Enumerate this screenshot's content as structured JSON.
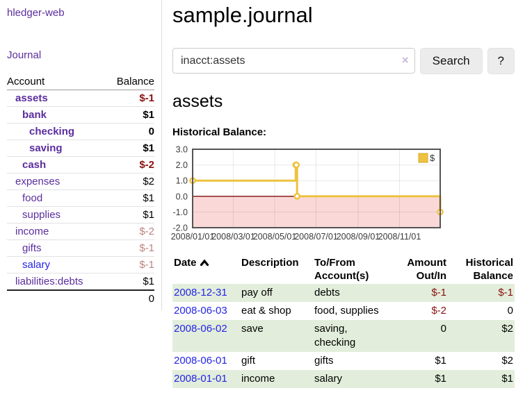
{
  "app": {
    "brand": "hledger-web",
    "journal_link": "Journal"
  },
  "sidebar": {
    "account_header": "Account",
    "balance_header": "Balance",
    "rows": [
      {
        "account": "assets",
        "indent": 1,
        "bold": true,
        "balance": "$-1",
        "tone": "neg",
        "link": "purple"
      },
      {
        "account": "bank",
        "indent": 2,
        "bold": true,
        "balance": "$1",
        "tone": "",
        "link": "purple"
      },
      {
        "account": "checking",
        "indent": 3,
        "bold": true,
        "balance": "0",
        "tone": "",
        "link": "purple"
      },
      {
        "account": "saving",
        "indent": 3,
        "bold": true,
        "balance": "$1",
        "tone": "",
        "link": "purple"
      },
      {
        "account": "cash",
        "indent": 2,
        "bold": true,
        "balance": "$-2",
        "tone": "neg",
        "link": "purple"
      },
      {
        "account": "expenses",
        "indent": 1,
        "bold": false,
        "balance": "$2",
        "tone": "",
        "link": "purple"
      },
      {
        "account": "food",
        "indent": 2,
        "bold": false,
        "balance": "$1",
        "tone": "",
        "link": "purple"
      },
      {
        "account": "supplies",
        "indent": 2,
        "bold": false,
        "balance": "$1",
        "tone": "",
        "link": "purple"
      },
      {
        "account": "income",
        "indent": 1,
        "bold": false,
        "balance": "$-2",
        "tone": "rose",
        "link": "purple"
      },
      {
        "account": "gifts",
        "indent": 2,
        "bold": false,
        "balance": "$-1",
        "tone": "rose",
        "link": "purple"
      },
      {
        "account": "salary",
        "indent": 2,
        "bold": false,
        "balance": "$-1",
        "tone": "rose",
        "link": "blue"
      },
      {
        "account": "liabilities:debts",
        "indent": 1,
        "bold": false,
        "balance": "$1",
        "tone": "",
        "link": "purple"
      }
    ],
    "total": "0"
  },
  "main": {
    "title": "sample.journal",
    "search": {
      "value": "inacct:assets",
      "clear_icon": "×",
      "button_label": "Search",
      "help_label": "?"
    },
    "account_heading": "assets"
  },
  "chart_data": {
    "type": "line",
    "step": true,
    "title": "Historical Balance:",
    "x_unit": "day_of_year_2008",
    "xlim": [
      0,
      365
    ],
    "ylim": [
      -2,
      3
    ],
    "xticks": [
      {
        "pos": 0,
        "label": "2008/01/01"
      },
      {
        "pos": 60,
        "label": "2008/03/01"
      },
      {
        "pos": 121,
        "label": "2008/05/01"
      },
      {
        "pos": 182,
        "label": "2008/07/01"
      },
      {
        "pos": 244,
        "label": "2008/09/01"
      },
      {
        "pos": 305,
        "label": "2008/11/01"
      }
    ],
    "yticks": [
      3,
      2,
      1,
      0,
      -1,
      -2
    ],
    "series": [
      {
        "name": "$",
        "color": "#edc240",
        "points": [
          [
            0,
            1
          ],
          [
            152,
            2
          ],
          [
            153,
            2
          ],
          [
            154,
            0
          ],
          [
            365,
            -1
          ]
        ]
      }
    ],
    "legend": {
      "position": "top-right",
      "entries": [
        {
          "label": "$",
          "color": "#edc240"
        }
      ]
    },
    "grid": true,
    "border_color": "#545454",
    "zero_line_color": "#7f0c0c",
    "negative_region_color": "#fbd8d8"
  },
  "register": {
    "headers": [
      {
        "key": "date",
        "lines": [
          "Date"
        ],
        "sortable": true
      },
      {
        "key": "description",
        "lines": [
          "Description"
        ]
      },
      {
        "key": "accounts",
        "lines": [
          "To/From",
          "Account(s)"
        ]
      },
      {
        "key": "amount",
        "lines": [
          "Amount",
          "Out/In"
        ],
        "align": "right"
      },
      {
        "key": "balance",
        "lines": [
          "Historical",
          "Balance"
        ],
        "align": "right"
      }
    ],
    "rows": [
      {
        "date": "2008-12-31",
        "description": "pay off",
        "accounts": "debts",
        "amount": "$-1",
        "amount_negative": true,
        "balance": "$-1",
        "balance_negative": true
      },
      {
        "date": "2008-06-03",
        "description": "eat & shop",
        "accounts": "food, supplies",
        "amount": "$-2",
        "amount_negative": true,
        "balance": "0",
        "balance_negative": false
      },
      {
        "date": "2008-06-02",
        "description": "save",
        "accounts": "saving,\nchecking",
        "amount": "0",
        "amount_negative": false,
        "balance": "$2",
        "balance_negative": false
      },
      {
        "date": "2008-06-01",
        "description": "gift",
        "accounts": "gifts",
        "amount": "$1",
        "amount_negative": false,
        "balance": "$2",
        "balance_negative": false
      },
      {
        "date": "2008-01-01",
        "description": "income",
        "accounts": "salary",
        "amount": "$1",
        "amount_negative": false,
        "balance": "$1",
        "balance_negative": false
      }
    ]
  },
  "colors": {
    "link_purple": "#5b2d9e",
    "link_blue": "#2424e8",
    "negative_strong": "#8b1010",
    "negative_soft": "#bd8282",
    "row_stripe_green": "#e2eedb",
    "series_gold": "#edc240",
    "negative_region_pink": "#fbd8d8",
    "zero_line_red": "#7f0c0c",
    "chart_border_gray": "#545454"
  }
}
